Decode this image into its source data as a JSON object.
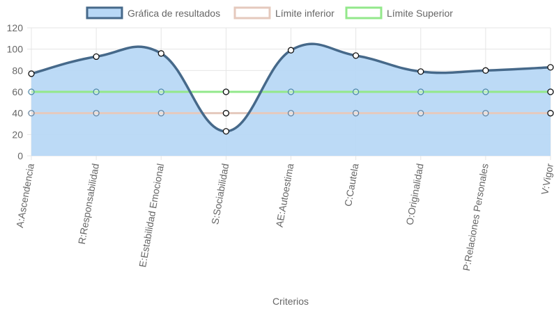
{
  "chart_data": {
    "type": "line",
    "categories": [
      "A:Ascendencia",
      "R:Responsabilidad",
      "E:Estabilidad Emocional",
      "S:Sociabilidad",
      "AE:Autoestima",
      "C:Cautela",
      "O:Originalidad",
      "P:Relaciones Personales",
      "V:Vigor"
    ],
    "series": [
      {
        "name": "Gráfica de resultados",
        "values": [
          77,
          93,
          96,
          23,
          99,
          94,
          79,
          80,
          83
        ],
        "fill": true,
        "smooth": true,
        "stroke": "#46698a",
        "fillColor": "#b8d8f6"
      },
      {
        "name": "Límite inferior",
        "values": [
          40,
          40,
          40,
          40,
          40,
          40,
          40,
          40,
          40
        ],
        "fill": false,
        "smooth": false,
        "stroke": "#e5c9bd"
      },
      {
        "name": "Límite Superior",
        "values": [
          60,
          60,
          60,
          60,
          60,
          60,
          60,
          60,
          60
        ],
        "fill": false,
        "smooth": false,
        "stroke": "#93e88b"
      }
    ],
    "xlabel": "Criterios",
    "ylabel": "",
    "ylim": [
      0,
      120
    ],
    "yticks": [
      0,
      20,
      40,
      60,
      80,
      100,
      120
    ],
    "grid": true,
    "legend": "top-center"
  }
}
